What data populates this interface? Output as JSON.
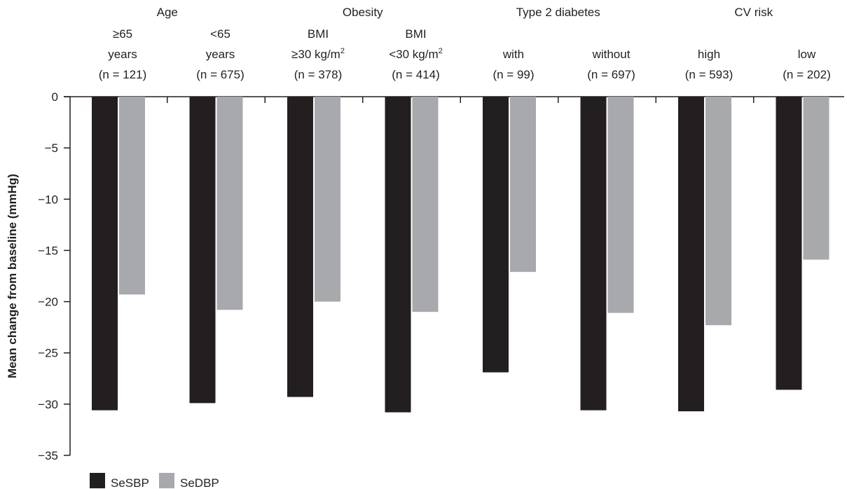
{
  "chart_data": {
    "type": "bar",
    "ylabel": "Mean change from baseline (mmHg)",
    "ylim": [
      -35,
      0
    ],
    "yticks": [
      0,
      -5,
      -10,
      -15,
      -20,
      -25,
      -30,
      -35
    ],
    "ytick_labels": [
      "0",
      "−5",
      "−10",
      "−15",
      "−20",
      "−25",
      "−30",
      "−35"
    ],
    "groups": [
      {
        "label": "Age"
      },
      {
        "label": "Obesity"
      },
      {
        "label": "Type 2 diabetes"
      },
      {
        "label": "CV risk"
      }
    ],
    "categories": [
      {
        "group": "Age",
        "line1": "≥65",
        "line2": "years",
        "n": "(n = 121)"
      },
      {
        "group": "Age",
        "line1": "<65",
        "line2": "years",
        "n": "(n = 675)"
      },
      {
        "group": "Obesity",
        "line1": "BMI",
        "line2": "≥30 kg/m",
        "sup": "2",
        "n": "(n = 378)"
      },
      {
        "group": "Obesity",
        "line1": "BMI",
        "line2": "<30 kg/m",
        "sup": "2",
        "n": "(n = 414)"
      },
      {
        "group": "Type 2 diabetes",
        "line1": "",
        "line2": "with",
        "n": "(n = 99)"
      },
      {
        "group": "Type 2 diabetes",
        "line1": "",
        "line2": "without",
        "n": "(n = 697)"
      },
      {
        "group": "CV risk",
        "line1": "",
        "line2": "high",
        "n": "(n = 593)"
      },
      {
        "group": "CV risk",
        "line1": "",
        "line2": "low",
        "n": "(n = 202)"
      }
    ],
    "series": [
      {
        "name": "SeSBP",
        "color": "#231f20",
        "values": [
          -30.6,
          -29.9,
          -29.3,
          -30.8,
          -26.9,
          -30.6,
          -30.7,
          -28.6
        ]
      },
      {
        "name": "SeDBP",
        "color": "#a7a9ac",
        "values": [
          -19.3,
          -20.8,
          -20.0,
          -21.0,
          -17.1,
          -21.1,
          -22.3,
          -15.9
        ]
      }
    ],
    "grid": false,
    "legend_position": "bottom-left"
  }
}
